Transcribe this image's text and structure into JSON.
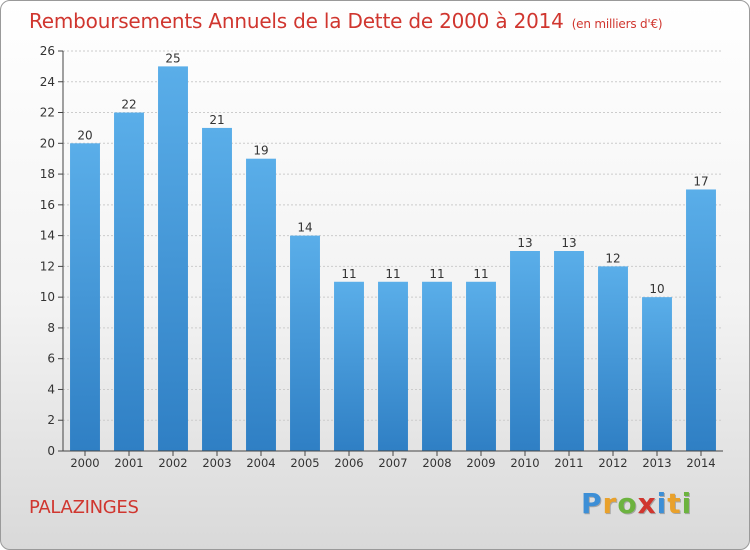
{
  "title": "Remboursements Annuels de la Dette de 2000 à 2014",
  "subtitle": "(en milliers d'€)",
  "commune": "PALAZINGES",
  "logo": {
    "letters": [
      "P",
      "r",
      "o",
      "x",
      "i",
      "t",
      "i"
    ],
    "colors": [
      "#3d8fd6",
      "#e9a12b",
      "#6cb33f",
      "#d0362f",
      "#3d8fd6",
      "#e9a12b",
      "#6cb33f"
    ]
  },
  "colors": {
    "bar_top": "#5aaee9",
    "bar_bottom": "#2f7fc4",
    "accent": "#d0362f",
    "grid": "#cccccc",
    "axis": "#444444"
  },
  "chart_data": {
    "type": "bar",
    "title": "Remboursements Annuels de la Dette de 2000 à 2014",
    "xlabel": "",
    "ylabel": "",
    "categories": [
      "2000",
      "2001",
      "2002",
      "2003",
      "2004",
      "2005",
      "2006",
      "2007",
      "2008",
      "2009",
      "2010",
      "2011",
      "2012",
      "2013",
      "2014"
    ],
    "values": [
      20,
      22,
      25,
      21,
      19,
      14,
      11,
      11,
      11,
      11,
      13,
      13,
      12,
      10,
      17
    ],
    "ylim": [
      0,
      26
    ],
    "yticks": [
      0,
      2,
      4,
      6,
      8,
      10,
      12,
      14,
      16,
      18,
      20,
      22,
      24,
      26
    ],
    "grid": true
  }
}
